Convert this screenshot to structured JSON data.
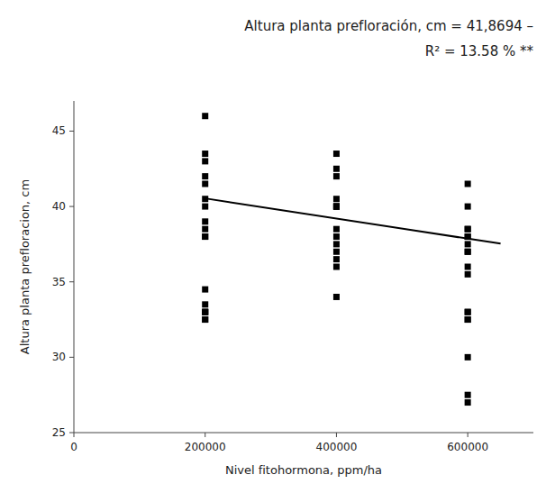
{
  "chart_data": {
    "type": "scatter",
    "title": "Altura planta prefloración, cm = 41,8694 –",
    "subtitle": "R² = 13.58 %        **",
    "xlabel": "Nivel fitohormona, ppm/ha",
    "ylabel": "Altura planta prefloracion, cm",
    "xlim": [
      0,
      700000
    ],
    "ylim": [
      25,
      47
    ],
    "xticks": [
      0,
      200000,
      400000,
      600000
    ],
    "yticks": [
      25,
      30,
      35,
      40,
      45
    ],
    "grid": false,
    "series": [
      {
        "type": "scatter",
        "color": "#000000",
        "marker": "square",
        "x": [
          200000,
          200000,
          200000,
          200000,
          200000,
          200000,
          200000,
          200000,
          200000,
          200000,
          200000,
          200000,
          200000,
          200000,
          200000,
          200000,
          200000,
          200000,
          400000,
          400000,
          400000,
          400000,
          400000,
          400000,
          400000,
          400000,
          400000,
          400000,
          400000,
          400000,
          400000,
          400000,
          400000,
          600000,
          600000,
          600000,
          600000,
          600000,
          600000,
          600000,
          600000,
          600000,
          600000,
          600000,
          600000,
          600000,
          600000,
          600000,
          600000,
          600000,
          600000
        ],
        "values": [
          46.0,
          43.5,
          43.0,
          42.0,
          41.5,
          40.5,
          40.0,
          39.0,
          38.5,
          38.0,
          38.0,
          34.5,
          33.5,
          33.0,
          33.0,
          33.0,
          32.5,
          32.5,
          43.5,
          42.5,
          42.0,
          40.5,
          40.0,
          40.0,
          38.5,
          38.0,
          37.0,
          36.5,
          36.0,
          34.0,
          37.5,
          40.0,
          40.0,
          41.5,
          40.0,
          38.5,
          38.0,
          37.5,
          37.0,
          37.0,
          36.0,
          35.5,
          33.0,
          33.0,
          32.5,
          32.5,
          30.0,
          27.5,
          27.0,
          38.0,
          38.5
        ]
      },
      {
        "type": "line",
        "color": "#000000",
        "line_style": "solid",
        "x": [
          200000,
          650000
        ],
        "values": [
          40.5354,
          37.5339
        ]
      }
    ]
  }
}
